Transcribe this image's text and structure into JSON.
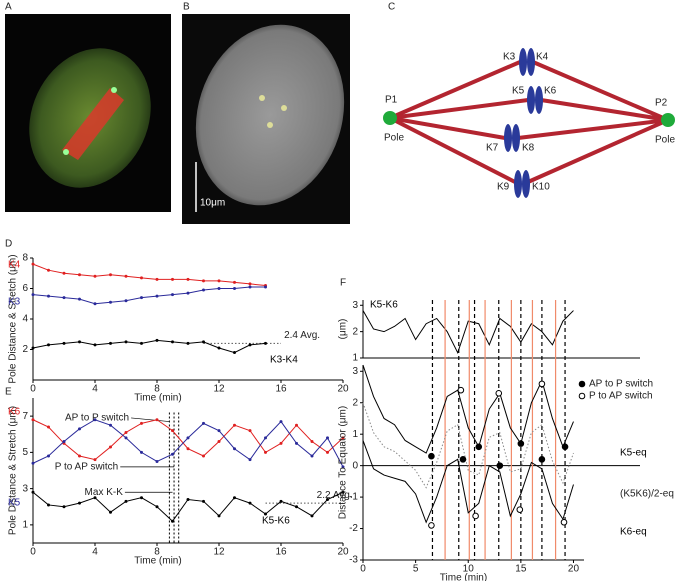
{
  "panel_labels": [
    "A",
    "B",
    "C",
    "D",
    "E",
    "F"
  ],
  "image_b": {
    "scale_label": "10μm"
  },
  "diagram": {
    "poles": [
      "P1",
      "P2"
    ],
    "pole_word": [
      "Pole",
      "Pole"
    ],
    "kinetochores": [
      "K3",
      "K4",
      "K5",
      "K6",
      "K7",
      "K8",
      "K9",
      "K10"
    ]
  },
  "chart_data": [
    {
      "type": "line",
      "markers": true,
      "x": [
        0,
        1,
        2,
        3,
        4,
        5,
        6,
        7,
        8,
        9,
        10,
        11,
        12,
        13,
        14,
        15
      ],
      "series": [
        {
          "name": "K4",
          "color": "#e02020",
          "values": [
            7.6,
            7.2,
            7.0,
            6.9,
            6.8,
            6.9,
            6.8,
            6.7,
            6.6,
            6.6,
            6.6,
            6.5,
            6.5,
            6.4,
            6.3,
            6.2
          ]
        },
        {
          "name": "K3",
          "color": "#2a2a9a",
          "values": [
            5.6,
            5.5,
            5.4,
            5.3,
            5.0,
            5.1,
            5.2,
            5.4,
            5.5,
            5.6,
            5.7,
            5.9,
            6.0,
            6.0,
            6.1,
            6.1
          ]
        },
        {
          "name": "K3-K4",
          "color": "#000000",
          "values": [
            2.1,
            2.3,
            2.4,
            2.5,
            2.3,
            2.4,
            2.5,
            2.4,
            2.6,
            2.5,
            2.4,
            2.5,
            2.1,
            1.8,
            2.3,
            2.4
          ]
        }
      ],
      "avg": {
        "value": 2.4,
        "label": "2.4 Avg."
      },
      "xlim": [
        0,
        20
      ],
      "ylim": [
        0,
        8
      ],
      "xticks": [
        0,
        4,
        8,
        12,
        16,
        20
      ],
      "yticks": [
        2,
        4,
        6,
        8
      ],
      "xlabel": "Time (min)",
      "ylabel": "Pole Distance & Stretch (μm)"
    },
    {
      "type": "line",
      "markers": true,
      "x": [
        0,
        1,
        2,
        3,
        4,
        5,
        6,
        7,
        8,
        9,
        10,
        11,
        12,
        13,
        14,
        15,
        16,
        17,
        18,
        19,
        20
      ],
      "series": [
        {
          "name": "K6",
          "color": "#e02020",
          "values": [
            6.8,
            6.4,
            5.5,
            4.8,
            4.6,
            5.3,
            6.1,
            6.6,
            6.8,
            6.2,
            5.2,
            4.8,
            5.6,
            6.5,
            6.2,
            5.0,
            5.5,
            6.5,
            5.6,
            5.0,
            5.8
          ]
        },
        {
          "name": "K5",
          "color": "#2a2a9a",
          "values": [
            4.4,
            4.8,
            5.6,
            6.3,
            6.8,
            6.5,
            5.8,
            5.0,
            4.5,
            4.9,
            5.8,
            6.6,
            6.2,
            5.2,
            4.6,
            5.8,
            6.7,
            5.5,
            4.8,
            5.8,
            4.2
          ]
        },
        {
          "name": "K5-K6",
          "color": "#000000",
          "values": [
            2.8,
            2.1,
            2.0,
            2.2,
            2.5,
            1.7,
            2.3,
            2.5,
            2.0,
            1.2,
            2.4,
            2.3,
            1.5,
            2.5,
            2.2,
            1.6,
            2.3,
            2.0,
            1.5,
            2.4,
            2.8
          ]
        }
      ],
      "avg": {
        "value": 2.2,
        "label": "2.2 Avg."
      },
      "vlines": [
        8.8,
        9.1,
        9.4
      ],
      "annotations": [
        "AP to P switch",
        "P to AP switch",
        "Max K-K"
      ],
      "xlim": [
        0,
        20
      ],
      "ylim": [
        0,
        8
      ],
      "xticks": [
        0,
        4,
        8,
        12,
        16,
        20
      ],
      "yticks": [
        1,
        3,
        5,
        7
      ],
      "xlabel": "Time (min)",
      "ylabel": "Pole Distance & Stretch (μm)"
    },
    {
      "type": "line",
      "x": [
        0,
        1,
        2,
        3,
        4,
        5,
        6,
        7,
        8,
        9,
        10,
        11,
        12,
        13,
        14,
        15,
        16,
        17,
        18,
        19,
        20
      ],
      "series": [
        {
          "name": "K5-K6",
          "color": "#000000",
          "values": [
            2.8,
            2.1,
            2.0,
            2.2,
            2.5,
            1.7,
            2.3,
            2.5,
            2.0,
            1.2,
            2.4,
            2.3,
            1.5,
            2.5,
            2.2,
            1.6,
            2.3,
            2.0,
            1.5,
            2.4,
            2.8
          ]
        }
      ],
      "xlim": [
        0,
        21
      ],
      "ylim": [
        1,
        3.2
      ],
      "yticks": [
        1,
        2,
        3
      ],
      "ylabel": "(μm)"
    },
    {
      "type": "line",
      "x": [
        0,
        1,
        2,
        3,
        4,
        5,
        6,
        7,
        8,
        9,
        10,
        11,
        12,
        13,
        14,
        15,
        16,
        17,
        18,
        19,
        20
      ],
      "series": [
        {
          "name": "K5-eq",
          "color": "#000000",
          "values": [
            3.2,
            2.2,
            1.5,
            1.3,
            0.8,
            0.6,
            0.4,
            1.2,
            2.2,
            2.4,
            1.2,
            0.6,
            1.8,
            2.3,
            1.2,
            0.7,
            2.0,
            2.7,
            1.5,
            0.6,
            1.4
          ]
        },
        {
          "name": "(K5K6)/2-eq",
          "color": "#888888",
          "style": "dotted",
          "values": [
            2.0,
            1.05,
            0.6,
            0.45,
            0.15,
            -0.15,
            -0.7,
            0.1,
            1.1,
            1.3,
            -0.15,
            -0.3,
            0.9,
            1.05,
            -0.2,
            -0.1,
            1.05,
            1.3,
            0.15,
            -0.55,
            0.4
          ]
        },
        {
          "name": "K6-eq",
          "color": "#000000",
          "values": [
            0.8,
            -0.1,
            -0.3,
            -0.4,
            -0.5,
            -0.9,
            -1.8,
            -1.0,
            0.0,
            0.2,
            -1.5,
            -1.2,
            0.0,
            -0.2,
            -1.6,
            -0.9,
            0.1,
            -0.1,
            -1.2,
            -1.7,
            -0.6
          ]
        }
      ],
      "switches": [
        {
          "name": "AP to P switch",
          "fill": "#000000",
          "x": [
            6.5,
            9.5,
            11,
            13,
            15,
            17,
            19.2
          ],
          "y": [
            0.3,
            0.2,
            0.6,
            0,
            0.7,
            0.2,
            0.6
          ]
        },
        {
          "name": "P to AP switch",
          "fill": "#ffffff",
          "x": [
            6.5,
            9.3,
            10.7,
            12.9,
            14.9,
            17,
            19.1
          ],
          "y": [
            -1.9,
            2.4,
            -1.6,
            2.3,
            -1.4,
            2.6,
            -1.8
          ]
        }
      ],
      "vlines_black": [
        6.6,
        9.1,
        10.6,
        12.9,
        15,
        17,
        19.2
      ],
      "vlines_orange": [
        7.8,
        10.1,
        11.6,
        14.1,
        16.1,
        18.3
      ],
      "xlim": [
        0,
        21
      ],
      "ylim": [
        -3,
        3.2
      ],
      "xticks": [
        0,
        5,
        10,
        15,
        20
      ],
      "yticks": [
        -3,
        -2,
        -1,
        0,
        1,
        2,
        3
      ],
      "xlabel": "Time (min)",
      "ylabel": "Distance To Equator (μm)"
    }
  ]
}
